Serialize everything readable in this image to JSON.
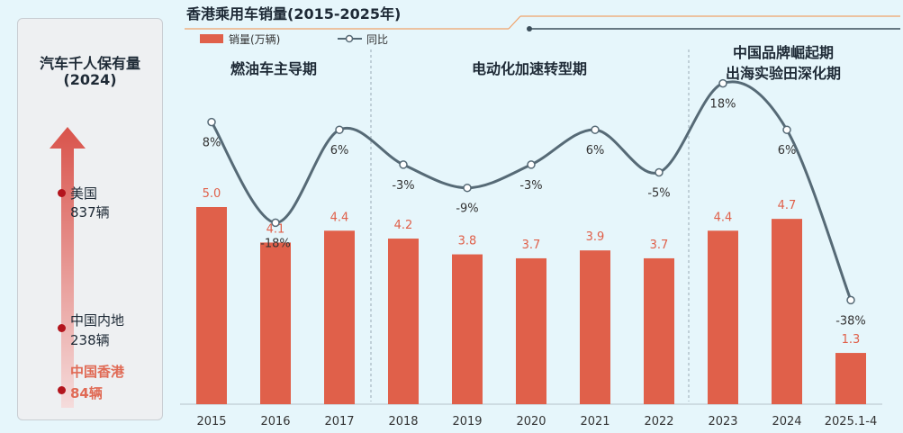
{
  "side_panel": {
    "title_line1": "汽车千人保有量",
    "title_line2": "(2024)",
    "items": [
      {
        "name": "美国",
        "value": "837辆"
      },
      {
        "name": "中国内地",
        "value": "238辆"
      },
      {
        "name": "中国香港",
        "value": "84辆"
      }
    ]
  },
  "watermark": {
    "line1": "",
    "line2": ""
  },
  "chart_data": {
    "type": "bar",
    "title": "香港乘用车销量(2015-2025年)",
    "categories": [
      "2015",
      "2016",
      "2017",
      "2018",
      "2019",
      "2020",
      "2021",
      "2022",
      "2023",
      "2024",
      "2025.1-4"
    ],
    "series": [
      {
        "name": "销量(万辆)",
        "type": "bar",
        "values": [
          5.0,
          4.1,
          4.4,
          4.2,
          3.8,
          3.7,
          3.9,
          3.7,
          4.4,
          4.7,
          1.3
        ],
        "labels": [
          "5.0",
          "4.1",
          "4.4",
          "4.2",
          "3.8",
          "3.7",
          "3.9",
          "3.7",
          "4.4",
          "4.7",
          "1.3"
        ]
      },
      {
        "name": "同比",
        "type": "line",
        "values": [
          8,
          -18,
          6,
          -3,
          -9,
          -3,
          6,
          -5,
          18,
          6,
          -38
        ],
        "labels": [
          "8%",
          "-18%",
          "6%",
          "-3%",
          "-9%",
          "-3%",
          "6%",
          "-5%",
          "18%",
          "6%",
          "-38%"
        ]
      }
    ],
    "phases": [
      {
        "label": "燃油车主导期",
        "label2": ""
      },
      {
        "label": "电动化加速转型期",
        "label2": ""
      },
      {
        "label": "中国品牌崛起期",
        "label2": "出海实验田深化期"
      }
    ],
    "colors": {
      "bar": "#e0604a",
      "line": "#566a76",
      "bar_label": "#e0604a",
      "accent": "#f0a26a"
    }
  }
}
